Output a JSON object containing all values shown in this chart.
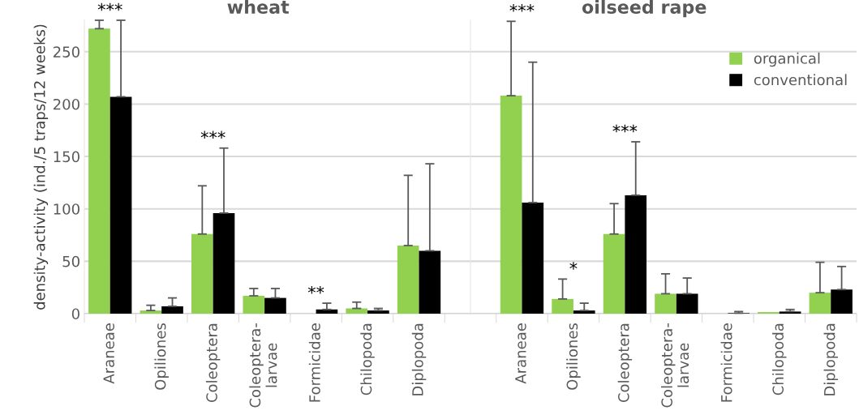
{
  "chart_data": [
    {
      "type": "bar",
      "title": "wheat",
      "ylabel": "density-activity (ind./5 traps/12 weeks)",
      "categories": [
        "Araneae",
        "Opiliones",
        "Coleoptera",
        "Coleoptera-\nlarvae",
        "Formicidae",
        "Chilopoda",
        "Diplopoda"
      ],
      "ylim": [
        0,
        280
      ],
      "yticks": [
        0,
        50,
        100,
        150,
        200,
        250
      ],
      "grid": "y",
      "legend": false,
      "series": [
        {
          "color": "#92d050",
          "values": [
            272,
            3,
            76,
            17,
            0,
            5,
            65
          ],
          "errors": [
            [
              272,
              280
            ],
            [
              3,
              8
            ],
            [
              76,
              122
            ],
            [
              17,
              24
            ],
            null,
            [
              5,
              11
            ],
            [
              65,
              132
            ]
          ]
        },
        {
          "color": "#000000",
          "values": [
            207,
            7,
            96,
            15,
            4,
            3,
            60
          ],
          "errors": [
            [
              207,
              280
            ],
            [
              7,
              15
            ],
            [
              96,
              158
            ],
            [
              15,
              24
            ],
            [
              4,
              10
            ],
            [
              3,
              5
            ],
            [
              60,
              143
            ]
          ]
        }
      ],
      "annotations": [
        "***",
        "***",
        "**"
      ]
    },
    {
      "type": "bar",
      "title": "oilseed rape",
      "categories": [
        "Araneae",
        "Opiliones",
        "Coleoptera",
        "Coleoptera-\nlarvae",
        "Formicidae",
        "Chilopoda",
        "Diplopoda"
      ],
      "ylim": [
        0,
        280
      ],
      "yticks": [
        0,
        50,
        100,
        150,
        200,
        250
      ],
      "grid": "y",
      "legend": "top right",
      "tick_labels": "x",
      "series": [
        {
          "name": "organical",
          "color": "#92d050",
          "values": [
            208,
            14,
            76,
            19,
            0,
            1.5,
            20
          ],
          "errors": [
            [
              208,
              279
            ],
            [
              14,
              33
            ],
            [
              76,
              105
            ],
            [
              19,
              38
            ],
            null,
            null,
            [
              20,
              49
            ]
          ]
        },
        {
          "name": "conventional",
          "color": "#000000",
          "values": [
            106,
            3,
            113,
            19,
            0.5,
            2,
            23
          ],
          "errors": [
            [
              106,
              240
            ],
            [
              3,
              10
            ],
            [
              113,
              164
            ],
            [
              19,
              34
            ],
            [
              0.5,
              2
            ],
            [
              2,
              4
            ],
            [
              23,
              45
            ]
          ]
        }
      ],
      "annotations": [
        "***",
        "*",
        "***"
      ]
    }
  ]
}
